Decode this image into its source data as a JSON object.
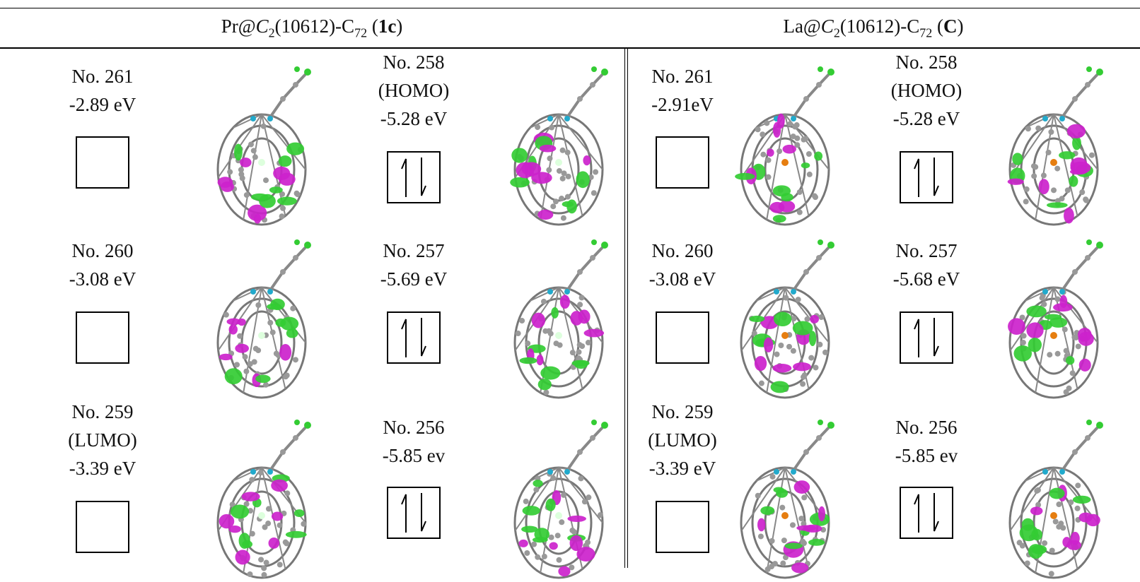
{
  "header": {
    "left": [
      "Pr@",
      "C",
      "2",
      "(10612)-C",
      "72",
      " (",
      "1c",
      ")"
    ],
    "right": [
      "La@",
      "C",
      "2",
      "(10612)-C",
      "72",
      " (",
      "C",
      ")"
    ]
  },
  "table": {
    "left": [
      {
        "unoccupied": [
          "No. 261",
          "-2.89 eV"
        ],
        "occupied": [
          "No. 258",
          "(HOMO)",
          "-5.28 eV"
        ]
      },
      {
        "unoccupied": [
          "No. 260",
          "-3.08 eV"
        ],
        "occupied": [
          "No. 257",
          "-5.69 eV"
        ]
      },
      {
        "unoccupied": [
          "No. 259",
          "(LUMO)",
          "-3.39 eV"
        ],
        "occupied": [
          "No. 256",
          "-5.85 ev"
        ]
      }
    ],
    "right": [
      {
        "unoccupied": [
          "No. 261",
          "-2.91eV"
        ],
        "occupied": [
          "No. 258",
          "(HOMO)",
          "-5.28 eV"
        ]
      },
      {
        "unoccupied": [
          "No. 260",
          "-3.08 eV"
        ],
        "occupied": [
          "No. 257",
          "-5.68 eV"
        ]
      },
      {
        "unoccupied": [
          "No. 259",
          "(LUMO)",
          "-3.39 eV"
        ],
        "occupied": [
          "No. 256",
          "-5.85 ev"
        ]
      }
    ]
  }
}
